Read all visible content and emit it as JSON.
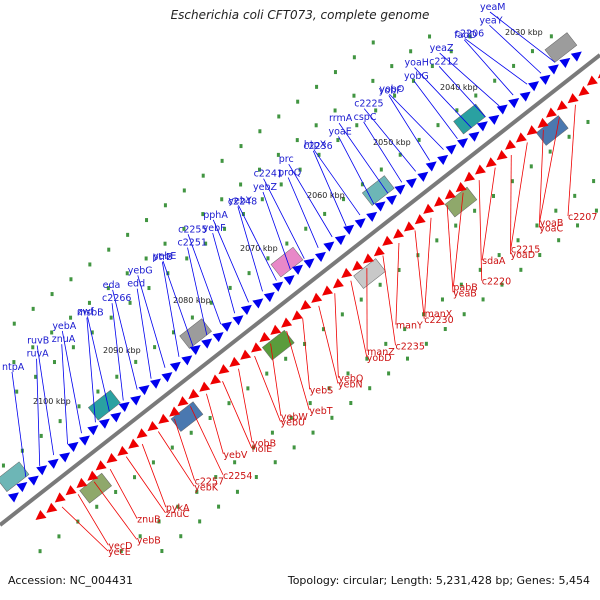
{
  "title": "Escherichia coli CFT073, complete genome",
  "accession": "Accession: NC_004431",
  "topology_line": "Topology: circular; Length: 5,231,428 bp; Genes: 5,454",
  "colors": {
    "forward": "#0000ee",
    "reverse": "#ee0000",
    "backbone": "#7a7a7a",
    "tick_dot": "#2c8a2c",
    "forward_label": "#1a1ad0",
    "reverse_label": "#cc1111"
  },
  "kbp_labels": [
    "2030 kbp",
    "2040 kbp",
    "2050 kbp",
    "2060 kbp",
    "2070 kbp",
    "2080 kbp",
    "2090 kbp",
    "2100 kbp"
  ],
  "forward_genes": [
    "yeaM",
    "yeaY",
    "c2206",
    "fadD",
    "yeaZ",
    "c2212",
    "yoaH",
    "yobG",
    "yobO",
    "yobF",
    "c2225",
    "cspC",
    "rrmA",
    "yoaE",
    "htpX",
    "c2236",
    "prc",
    "proQ",
    "c2241",
    "yebZ",
    "yebY",
    "c2248",
    "pphA",
    "yebF",
    "c2255",
    "c2251",
    "yebE",
    "ptrB",
    "yebG",
    "edd",
    "eda",
    "c2266",
    "zwf",
    "msbB",
    "yebA",
    "znuA",
    "ruvB",
    "ruvA",
    "ntpA"
  ],
  "reverse_genes": [
    "c2207",
    "yoaB",
    "yoaC",
    "c2215",
    "yoaD",
    "sdaA",
    "c2220",
    "pabB",
    "yeaB",
    "manX",
    "c2230",
    "manY",
    "c2235",
    "manZ",
    "yobD",
    "yebQ",
    "yebN",
    "yebS",
    "yebT",
    "yebW",
    "yebU",
    "yobB",
    "holE",
    "yebV",
    "c2254",
    "c2257",
    "yebK",
    "pykA",
    "znuC",
    "znuB",
    "yebB",
    "yecD",
    "yecE"
  ]
}
